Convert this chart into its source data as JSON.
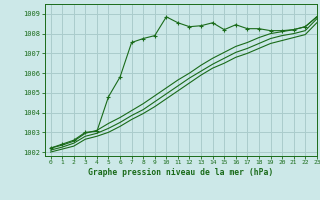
{
  "title": "Graphe pression niveau de la mer (hPa)",
  "background_color": "#cce8e8",
  "grid_color": "#aacccc",
  "line_color": "#1a6b1a",
  "text_color": "#1a6b1a",
  "xlim": [
    -0.5,
    23
  ],
  "ylim": [
    1001.8,
    1009.5
  ],
  "yticks": [
    1002,
    1003,
    1004,
    1005,
    1006,
    1007,
    1008,
    1009
  ],
  "xticks": [
    0,
    1,
    2,
    3,
    4,
    5,
    6,
    7,
    8,
    9,
    10,
    11,
    12,
    13,
    14,
    15,
    16,
    17,
    18,
    19,
    20,
    21,
    22,
    23
  ],
  "series_volatile": [
    1002.2,
    1002.4,
    1002.6,
    1003.0,
    1003.05,
    1004.8,
    1005.8,
    1007.55,
    1007.75,
    1007.9,
    1008.85,
    1008.55,
    1008.35,
    1008.4,
    1008.55,
    1008.2,
    1008.45,
    1008.25,
    1008.25,
    1008.15,
    1008.15,
    1008.2,
    1008.35,
    1008.85
  ],
  "series_line1": [
    1002.2,
    1002.35,
    1002.55,
    1002.95,
    1003.1,
    1003.45,
    1003.75,
    1004.1,
    1004.45,
    1004.85,
    1005.25,
    1005.65,
    1006.0,
    1006.4,
    1006.75,
    1007.05,
    1007.35,
    1007.55,
    1007.8,
    1008.0,
    1008.1,
    1008.2,
    1008.35,
    1008.85
  ],
  "series_line2": [
    1002.1,
    1002.25,
    1002.45,
    1002.8,
    1002.95,
    1003.2,
    1003.5,
    1003.85,
    1004.15,
    1004.55,
    1004.95,
    1005.35,
    1005.75,
    1006.1,
    1006.45,
    1006.75,
    1007.05,
    1007.25,
    1007.5,
    1007.75,
    1007.9,
    1008.0,
    1008.15,
    1008.75
  ],
  "series_line3": [
    1002.0,
    1002.15,
    1002.3,
    1002.65,
    1002.8,
    1003.0,
    1003.3,
    1003.65,
    1003.95,
    1004.3,
    1004.7,
    1005.1,
    1005.5,
    1005.9,
    1006.25,
    1006.5,
    1006.8,
    1007.0,
    1007.25,
    1007.5,
    1007.65,
    1007.8,
    1007.95,
    1008.55
  ]
}
